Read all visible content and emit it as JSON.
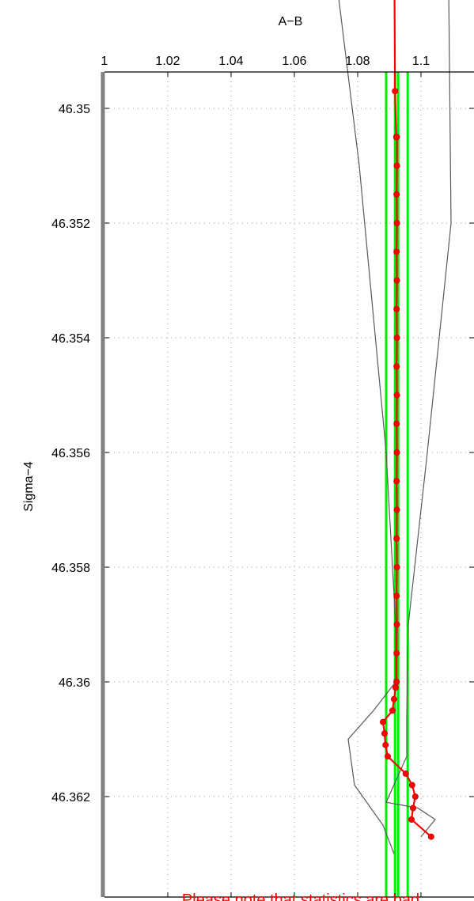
{
  "chart_data": {
    "type": "line",
    "title": "",
    "xlabel": "A−B",
    "ylabel": "Sigma−4",
    "xlim": [
      1,
      1.115
    ],
    "ylim": [
      46.3465,
      46.36375
    ],
    "y_reversed": true,
    "x_axis_position": "top",
    "grid": true,
    "x_ticks": [
      {
        "value": 1,
        "label": "1"
      },
      {
        "value": 1.02,
        "label": "1.02"
      },
      {
        "value": 1.04,
        "label": "1.04"
      },
      {
        "value": 1.06,
        "label": "1.06"
      },
      {
        "value": 1.08,
        "label": "1.08"
      },
      {
        "value": 1.1,
        "label": "1.1"
      }
    ],
    "y_ticks": [
      {
        "value": 46.35,
        "label": "46.35"
      },
      {
        "value": 46.352,
        "label": "46.352"
      },
      {
        "value": 46.354,
        "label": "46.354"
      },
      {
        "value": 46.356,
        "label": "46.356"
      },
      {
        "value": 46.358,
        "label": "46.358"
      },
      {
        "value": 46.36,
        "label": "46.36"
      },
      {
        "value": 46.362,
        "label": "46.362"
      }
    ],
    "series": [
      {
        "role": "sample",
        "color": "#ff0000",
        "markers": true,
        "points": [
          [
            1.0915,
            46.3465
          ],
          [
            1.0918,
            46.3497
          ],
          [
            1.0922,
            46.3505
          ],
          [
            1.0923,
            46.3515
          ],
          [
            1.0923,
            46.3525
          ],
          [
            1.0923,
            46.3535
          ],
          [
            1.0923,
            46.3545
          ],
          [
            1.0923,
            46.3555
          ],
          [
            1.0923,
            46.3565
          ],
          [
            1.0923,
            46.3575
          ],
          [
            1.0923,
            46.3585
          ],
          [
            1.0923,
            46.3595
          ],
          [
            1.0924,
            46.3505
          ],
          [
            1.0924,
            46.351
          ],
          [
            1.0924,
            46.352
          ],
          [
            1.0924,
            46.353
          ],
          [
            1.0924,
            46.354
          ],
          [
            1.0924,
            46.355
          ],
          [
            1.0924,
            46.356
          ],
          [
            1.0924,
            46.357
          ],
          [
            1.0924,
            46.358
          ],
          [
            1.0924,
            46.359
          ],
          [
            1.0923,
            46.36
          ]
        ]
      },
      {
        "role": "sample-tail",
        "color": "#ff0000",
        "markers": true,
        "points": [
          [
            1.0923,
            46.36
          ],
          [
            1.092,
            46.3601
          ],
          [
            1.0915,
            46.3603
          ],
          [
            1.091,
            46.3605
          ],
          [
            1.088,
            46.3607
          ],
          [
            1.0885,
            46.3609
          ],
          [
            1.0888,
            46.3611
          ],
          [
            1.0895,
            46.3613
          ],
          [
            1.0952,
            46.3616
          ],
          [
            1.0972,
            46.3618
          ],
          [
            1.0982,
            46.362
          ],
          [
            1.0975,
            46.3622
          ],
          [
            1.097,
            46.3624
          ],
          [
            1.1032,
            46.3627
          ]
        ]
      },
      {
        "role": "envelope",
        "color": "#5a5a5a",
        "markers": false,
        "points": [
          [
            1.0705,
            46.3465
          ],
          [
            1.0805,
            46.351
          ],
          [
            1.089,
            46.356
          ],
          [
            1.092,
            46.359
          ],
          [
            1.092,
            46.36
          ],
          [
            1.085,
            46.3605
          ],
          [
            1.077,
            46.361
          ],
          [
            1.079,
            46.3618
          ],
          [
            1.088,
            46.3625
          ],
          [
            1.0915,
            46.363
          ]
        ]
      },
      {
        "role": "envelope",
        "color": "#5a5a5a",
        "markers": false,
        "points": [
          [
            1.1085,
            46.3465
          ],
          [
            1.1095,
            46.352
          ],
          [
            1.102,
            46.356
          ],
          [
            1.096,
            46.359
          ],
          [
            1.0955,
            46.3606
          ],
          [
            1.0955,
            46.3613
          ],
          [
            1.089,
            46.3621
          ],
          [
            1.099,
            46.3622
          ],
          [
            1.1045,
            46.3624
          ],
          [
            1.1,
            46.3627
          ]
        ]
      }
    ],
    "reference_lines": [
      {
        "x": 1.089,
        "color": "#00ee00"
      },
      {
        "x": 1.0918,
        "color": "#00ee00"
      },
      {
        "x": 1.0928,
        "color": "#00ee00"
      },
      {
        "x": 1.0958,
        "color": "#00ee00"
      }
    ],
    "annotation": {
      "text": "Please note that statistics are bad",
      "color": "#ff0000"
    }
  }
}
